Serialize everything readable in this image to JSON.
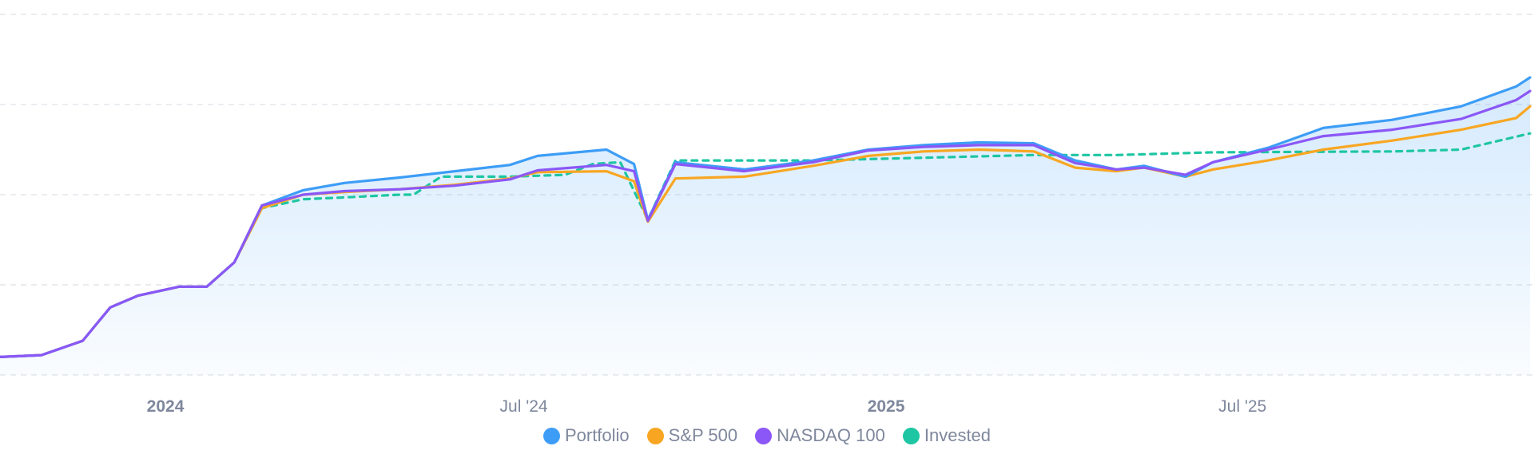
{
  "chart_data": {
    "type": "line",
    "title": "",
    "xlabel": "",
    "ylabel": "",
    "x_range": [
      "2023-10-09",
      "2025-11-24"
    ],
    "ylim": [
      0,
      4
    ],
    "y_gridlines": [
      0,
      1,
      2,
      3,
      4
    ],
    "grid": "horizontal dashed",
    "x_ticks": [
      {
        "date": "2024-01-01",
        "label": "2024",
        "bold": true
      },
      {
        "date": "2024-07-01",
        "label": "Jul '24",
        "bold": false
      },
      {
        "date": "2025-01-01",
        "label": "2025",
        "bold": true
      },
      {
        "date": "2025-07-01",
        "label": "Jul '25",
        "bold": false
      }
    ],
    "legend_position": "bottom-center",
    "series": [
      {
        "name": "Portfolio",
        "color": "#3d9df6",
        "style": "solid",
        "area": true,
        "points": [
          [
            "2023-10-09",
            0.2
          ],
          [
            "2023-10-30",
            0.22
          ],
          [
            "2023-11-20",
            0.38
          ],
          [
            "2023-12-04",
            0.75
          ],
          [
            "2023-12-18",
            0.88
          ],
          [
            "2024-01-08",
            0.98
          ],
          [
            "2024-01-22",
            0.98
          ],
          [
            "2024-02-05",
            1.25
          ],
          [
            "2024-02-19",
            1.88
          ],
          [
            "2024-03-11",
            2.05
          ],
          [
            "2024-04-01",
            2.13
          ],
          [
            "2024-04-29",
            2.19
          ],
          [
            "2024-05-27",
            2.26
          ],
          [
            "2024-06-24",
            2.33
          ],
          [
            "2024-07-08",
            2.43
          ],
          [
            "2024-08-12",
            2.5
          ],
          [
            "2024-08-26",
            2.34
          ],
          [
            "2024-09-02",
            1.72
          ],
          [
            "2024-09-16",
            2.36
          ],
          [
            "2024-10-21",
            2.28
          ],
          [
            "2024-11-25",
            2.38
          ],
          [
            "2024-12-23",
            2.5
          ],
          [
            "2025-01-20",
            2.55
          ],
          [
            "2025-02-17",
            2.58
          ],
          [
            "2025-03-17",
            2.57
          ],
          [
            "2025-04-07",
            2.38
          ],
          [
            "2025-04-28",
            2.28
          ],
          [
            "2025-05-12",
            2.32
          ],
          [
            "2025-06-02",
            2.2
          ],
          [
            "2025-06-16",
            2.36
          ],
          [
            "2025-07-14",
            2.52
          ],
          [
            "2025-08-11",
            2.74
          ],
          [
            "2025-09-15",
            2.83
          ],
          [
            "2025-10-20",
            2.98
          ],
          [
            "2025-11-17",
            3.2
          ],
          [
            "2025-11-24",
            3.3
          ]
        ]
      },
      {
        "name": "S&P 500",
        "color": "#f8a622",
        "style": "solid",
        "area": false,
        "points": [
          [
            "2023-10-09",
            0.2
          ],
          [
            "2023-10-30",
            0.22
          ],
          [
            "2023-11-20",
            0.38
          ],
          [
            "2023-12-04",
            0.75
          ],
          [
            "2023-12-18",
            0.88
          ],
          [
            "2024-01-08",
            0.98
          ],
          [
            "2024-01-22",
            0.98
          ],
          [
            "2024-02-05",
            1.25
          ],
          [
            "2024-02-19",
            1.85
          ],
          [
            "2024-03-11",
            2.0
          ],
          [
            "2024-04-01",
            2.03
          ],
          [
            "2024-04-29",
            2.06
          ],
          [
            "2024-05-27",
            2.11
          ],
          [
            "2024-06-24",
            2.18
          ],
          [
            "2024-07-08",
            2.25
          ],
          [
            "2024-08-12",
            2.26
          ],
          [
            "2024-08-26",
            2.15
          ],
          [
            "2024-09-02",
            1.7
          ],
          [
            "2024-09-16",
            2.18
          ],
          [
            "2024-10-21",
            2.2
          ],
          [
            "2024-11-25",
            2.32
          ],
          [
            "2024-12-23",
            2.43
          ],
          [
            "2025-01-20",
            2.48
          ],
          [
            "2025-02-17",
            2.5
          ],
          [
            "2025-03-17",
            2.48
          ],
          [
            "2025-04-07",
            2.3
          ],
          [
            "2025-04-28",
            2.26
          ],
          [
            "2025-05-12",
            2.3
          ],
          [
            "2025-06-02",
            2.2
          ],
          [
            "2025-06-16",
            2.28
          ],
          [
            "2025-07-14",
            2.38
          ],
          [
            "2025-08-11",
            2.5
          ],
          [
            "2025-09-15",
            2.6
          ],
          [
            "2025-10-20",
            2.72
          ],
          [
            "2025-11-17",
            2.85
          ],
          [
            "2025-11-24",
            2.98
          ]
        ]
      },
      {
        "name": "NASDAQ 100",
        "color": "#8b57f6",
        "style": "solid",
        "area": false,
        "points": [
          [
            "2023-10-09",
            0.2
          ],
          [
            "2023-10-30",
            0.22
          ],
          [
            "2023-11-20",
            0.38
          ],
          [
            "2023-12-04",
            0.75
          ],
          [
            "2023-12-18",
            0.88
          ],
          [
            "2024-01-08",
            0.98
          ],
          [
            "2024-01-22",
            0.98
          ],
          [
            "2024-02-05",
            1.25
          ],
          [
            "2024-02-19",
            1.88
          ],
          [
            "2024-03-11",
            2.0
          ],
          [
            "2024-04-01",
            2.04
          ],
          [
            "2024-04-29",
            2.06
          ],
          [
            "2024-05-27",
            2.1
          ],
          [
            "2024-06-24",
            2.17
          ],
          [
            "2024-07-08",
            2.27
          ],
          [
            "2024-08-12",
            2.33
          ],
          [
            "2024-08-26",
            2.26
          ],
          [
            "2024-09-02",
            1.71
          ],
          [
            "2024-09-16",
            2.34
          ],
          [
            "2024-10-21",
            2.26
          ],
          [
            "2024-11-25",
            2.36
          ],
          [
            "2024-12-23",
            2.49
          ],
          [
            "2025-01-20",
            2.53
          ],
          [
            "2025-02-17",
            2.55
          ],
          [
            "2025-03-17",
            2.55
          ],
          [
            "2025-04-07",
            2.35
          ],
          [
            "2025-04-28",
            2.28
          ],
          [
            "2025-05-12",
            2.3
          ],
          [
            "2025-06-02",
            2.22
          ],
          [
            "2025-06-16",
            2.36
          ],
          [
            "2025-07-14",
            2.5
          ],
          [
            "2025-08-11",
            2.65
          ],
          [
            "2025-09-15",
            2.72
          ],
          [
            "2025-10-20",
            2.84
          ],
          [
            "2025-11-17",
            3.05
          ],
          [
            "2025-11-24",
            3.15
          ]
        ]
      },
      {
        "name": "Invested",
        "color": "#1ec6a3",
        "style": "dashed",
        "area": false,
        "points": [
          [
            "2023-10-09",
            0.2
          ],
          [
            "2023-10-30",
            0.22
          ],
          [
            "2023-11-20",
            0.38
          ],
          [
            "2023-12-04",
            0.75
          ],
          [
            "2023-12-18",
            0.88
          ],
          [
            "2024-01-08",
            0.98
          ],
          [
            "2024-01-22",
            0.98
          ],
          [
            "2024-02-05",
            1.25
          ],
          [
            "2024-02-19",
            1.85
          ],
          [
            "2024-03-11",
            1.95
          ],
          [
            "2024-04-01",
            1.97
          ],
          [
            "2024-04-29",
            2.0
          ],
          [
            "2024-05-06",
            2.0
          ],
          [
            "2024-05-20",
            2.2
          ],
          [
            "2024-06-24",
            2.2
          ],
          [
            "2024-07-22",
            2.22
          ],
          [
            "2024-08-05",
            2.34
          ],
          [
            "2024-08-19",
            2.36
          ],
          [
            "2024-09-02",
            1.72
          ],
          [
            "2024-09-16",
            2.38
          ],
          [
            "2024-11-25",
            2.38
          ],
          [
            "2025-01-20",
            2.41
          ],
          [
            "2025-03-17",
            2.44
          ],
          [
            "2025-04-28",
            2.44
          ],
          [
            "2025-06-16",
            2.47
          ],
          [
            "2025-09-15",
            2.48
          ],
          [
            "2025-10-20",
            2.5
          ],
          [
            "2025-11-24",
            2.68
          ]
        ]
      }
    ]
  }
}
